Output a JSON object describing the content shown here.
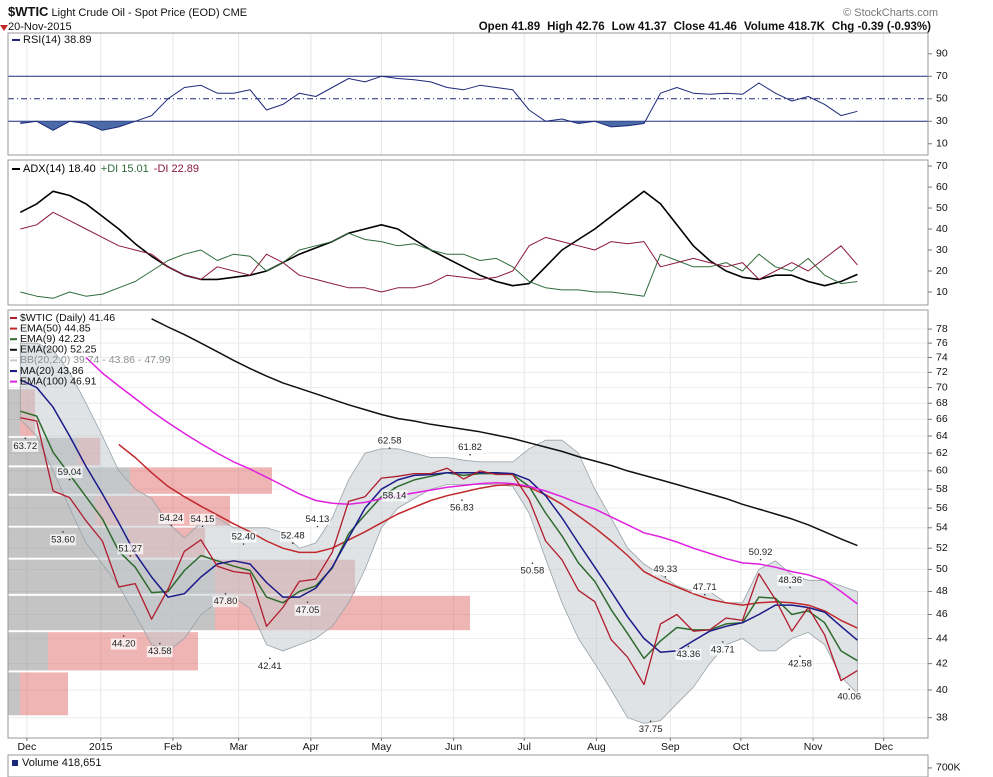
{
  "header": {
    "symbol": "$WTIC",
    "name": "Light Crude Oil - Spot Price (EOD) CME",
    "date": "20-Nov-2015",
    "copyright": "© StockCharts.com",
    "stats": [
      {
        "label": "Open",
        "value": "41.89"
      },
      {
        "label": "High",
        "value": "42.76"
      },
      {
        "label": "Low",
        "value": "41.37"
      },
      {
        "label": "Close",
        "value": "41.46"
      },
      {
        "label": "Volume",
        "value": "418.7K"
      },
      {
        "label": "Chg",
        "value": "-0.39 (-0.93%)"
      }
    ]
  },
  "chart_data": [
    {
      "type": "line",
      "ylim": [
        0,
        108.5
      ],
      "yticks": [
        10,
        30,
        50,
        70,
        90
      ],
      "levels": [
        70,
        50,
        30
      ],
      "level_color": "#1f2a7a",
      "fill_color": "#4a6aa8",
      "series": [
        {
          "name": "RSI(14) 38.89",
          "color": "#1f2a7a",
          "values": [
            28,
            30,
            22,
            30,
            28,
            22,
            25,
            30,
            35,
            50,
            60,
            62,
            55,
            55,
            58,
            40,
            45,
            55,
            52,
            60,
            68,
            65,
            70,
            68,
            67,
            65,
            60,
            58,
            62,
            60,
            58,
            40,
            30,
            32,
            28,
            30,
            25,
            26,
            28,
            55,
            60,
            55,
            54,
            55,
            54,
            64,
            55,
            48,
            52,
            45,
            35,
            38.89
          ]
        }
      ]
    },
    {
      "type": "line",
      "ylim": [
        3.8,
        72.9
      ],
      "yticks": [
        10,
        20,
        30,
        40,
        50,
        60,
        70
      ],
      "series": [
        {
          "name": "ADX(14) 18.40",
          "color": "#000000",
          "values": [
            48,
            52,
            58,
            56,
            52,
            46,
            40,
            33,
            27,
            22,
            18,
            16,
            16,
            17,
            18,
            20,
            24,
            28,
            31,
            34,
            38,
            40,
            42,
            40,
            35,
            30,
            26,
            22,
            18,
            15,
            13,
            14,
            22,
            30,
            35,
            40,
            46,
            52,
            58,
            52,
            42,
            32,
            25,
            20,
            17,
            16,
            18,
            18,
            15,
            13,
            15,
            18.4
          ]
        },
        {
          "name": "+DI 15.01",
          "color": "#2e6b3a",
          "values": [
            10,
            8,
            7,
            10,
            8,
            9,
            12,
            15,
            20,
            25,
            28,
            30,
            25,
            28,
            27,
            20,
            24,
            30,
            32,
            34,
            38,
            35,
            34,
            32,
            33,
            30,
            28,
            28,
            25,
            26,
            22,
            15,
            12,
            11,
            11,
            10,
            10,
            9,
            8,
            28,
            25,
            22,
            22,
            24,
            20,
            28,
            22,
            20,
            26,
            18,
            14,
            15.01
          ]
        },
        {
          "name": "-DI 22.89",
          "color": "#8b1a3a",
          "values": [
            40,
            42,
            48,
            44,
            40,
            36,
            32,
            30,
            28,
            22,
            18,
            16,
            22,
            20,
            18,
            28,
            24,
            18,
            16,
            14,
            12,
            12,
            10,
            12,
            12,
            14,
            18,
            17,
            16,
            17,
            20,
            32,
            36,
            34,
            32,
            30,
            34,
            33,
            34,
            22,
            24,
            26,
            24,
            22,
            24,
            16,
            20,
            24,
            20,
            26,
            32,
            22.89
          ]
        }
      ]
    },
    {
      "type": "line",
      "log": true,
      "grid": true,
      "x": [
        0,
        1,
        2,
        3,
        4,
        5,
        6,
        7,
        8,
        9,
        10,
        11,
        12,
        13,
        14,
        15,
        16,
        17,
        18,
        19,
        20,
        21,
        22,
        23,
        24,
        25,
        26,
        27,
        28,
        29,
        30,
        31,
        32,
        33,
        34,
        35,
        36,
        37,
        38,
        39,
        40,
        41,
        42,
        43,
        44,
        45,
        46,
        47,
        48,
        49,
        50,
        51
      ],
      "xlim": [
        -0.75,
        55.3
      ],
      "xticks": [
        {
          "value": 0.4,
          "label": "Dec"
        },
        {
          "value": 4.9,
          "label": "2015"
        },
        {
          "value": 9.3,
          "label": "Feb"
        },
        {
          "value": 13.3,
          "label": "Mar"
        },
        {
          "value": 17.7,
          "label": "Apr"
        },
        {
          "value": 22.0,
          "label": "May"
        },
        {
          "value": 26.4,
          "label": "Jun"
        },
        {
          "value": 30.7,
          "label": "Jul"
        },
        {
          "value": 35.1,
          "label": "Aug"
        },
        {
          "value": 39.6,
          "label": "Sep"
        },
        {
          "value": 43.9,
          "label": "Oct"
        },
        {
          "value": 48.3,
          "label": "Nov"
        },
        {
          "value": 52.6,
          "label": "Dec"
        }
      ],
      "ylim": [
        36.6,
        80.8
      ],
      "yticks": [
        38,
        40,
        42,
        44,
        46,
        48,
        50,
        52,
        54,
        56,
        58,
        60,
        62,
        64,
        66,
        68,
        70,
        72,
        74,
        76,
        78
      ],
      "series": [
        {
          "name": "$WTIC (Daily) 41.46",
          "color": "#b01c2e",
          "values": [
            66.2,
            65.8,
            57.8,
            57.1,
            54.7,
            52.7,
            48.4,
            48.7,
            45.6,
            48.2,
            51.7,
            52.8,
            50.3,
            49.8,
            49.6,
            45.0,
            46.6,
            48.9,
            49.1,
            51.6,
            56.7,
            57.2,
            59.2,
            59.4,
            59.7,
            59.7,
            60.3,
            59.1,
            60.0,
            59.6,
            59.6,
            56.9,
            52.7,
            50.9,
            48.1,
            47.1,
            43.9,
            42.5,
            40.4,
            45.2,
            46.0,
            44.6,
            44.7,
            45.7,
            45.5,
            49.6,
            47.3,
            44.6,
            46.6,
            44.3,
            40.7,
            41.46
          ]
        },
        {
          "name": "EMA(50) 44.85",
          "color": "#c0282c",
          "values": [
            null,
            null,
            null,
            null,
            null,
            null,
            63,
            61.5,
            59.8,
            58.3,
            57.2,
            56.2,
            55.3,
            54.4,
            53.6,
            52.7,
            52.0,
            51.6,
            51.6,
            52.0,
            52.8,
            53.6,
            54.5,
            55.4,
            56.1,
            56.8,
            57.3,
            57.7,
            58.1,
            58.4,
            58.5,
            58.2,
            57.4,
            56.4,
            55.2,
            54.0,
            52.7,
            51.3,
            49.8,
            49.0,
            48.4,
            47.8,
            47.3,
            47.0,
            46.8,
            47.0,
            47.1,
            47.0,
            46.8,
            46.3,
            45.5,
            44.85
          ]
        },
        {
          "name": "EMA(9) 42.23",
          "color": "#2e6b2e",
          "values": [
            67,
            66.4,
            62.1,
            59.6,
            57.2,
            54.9,
            51.7,
            50.2,
            47.9,
            48.0,
            49.9,
            51.3,
            50.8,
            50.3,
            49.9,
            47.5,
            47.0,
            48.0,
            48.5,
            50.1,
            53.4,
            55.3,
            57.2,
            58.3,
            59.0,
            59.4,
            59.8,
            59.5,
            59.7,
            59.7,
            59.6,
            58.3,
            55.5,
            53.2,
            50.6,
            48.9,
            46.4,
            44.4,
            42.4,
            43.8,
            44.9,
            44.7,
            44.7,
            45.2,
            45.3,
            47.5,
            47.4,
            46.0,
            46.3,
            45.3,
            43.0,
            42.23
          ]
        },
        {
          "name": "EMA(200) 52.25",
          "color": "#111111",
          "values": [
            null,
            null,
            null,
            null,
            null,
            null,
            null,
            null,
            79.5,
            78.3,
            77.2,
            76.0,
            74.8,
            73.6,
            72.5,
            71.5,
            70.6,
            69.9,
            69.2,
            68.5,
            67.8,
            67.2,
            66.6,
            66.1,
            65.8,
            65.4,
            65.1,
            64.8,
            64.5,
            64.1,
            63.7,
            63.2,
            62.7,
            62.2,
            61.6,
            61.1,
            60.6,
            60.0,
            59.5,
            59.0,
            58.5,
            58.0,
            57.5,
            57.0,
            56.4,
            55.9,
            55.4,
            54.9,
            54.3,
            53.6,
            52.9,
            52.25
          ]
        },
        {
          "name": "BB(20,2.0) 39.74 - 43.86 - 47.99",
          "color": "#c5ccd0",
          "band": true,
          "upper": [
            76,
            76,
            75,
            72,
            68,
            64,
            60,
            58,
            57,
            54.5,
            53,
            54.5,
            55,
            54,
            54,
            54,
            53.5,
            52,
            52.5,
            55,
            59,
            62,
            62.5,
            62.5,
            62,
            61.5,
            61.5,
            61.2,
            61,
            61,
            61,
            62.5,
            63.5,
            63.5,
            62,
            58,
            55,
            52,
            50.5,
            49.5,
            48.5,
            48,
            48,
            47,
            47,
            50,
            50.8,
            49.5,
            49,
            49,
            48.5,
            47.99
          ],
          "lower": [
            66,
            64,
            60,
            56,
            52.5,
            50.5,
            48.5,
            46,
            43.5,
            43,
            44,
            46,
            47,
            47.5,
            46.5,
            43.5,
            43,
            43.5,
            44,
            45,
            47,
            50,
            54,
            56,
            57,
            58,
            58.5,
            58.5,
            58.5,
            58.5,
            58.3,
            55.5,
            51,
            47,
            44,
            42,
            40,
            38,
            37.6,
            37.8,
            39,
            40.2,
            42,
            43.5,
            44,
            43,
            43,
            44,
            44.5,
            43.5,
            41,
            39.74
          ]
        },
        {
          "name": "MA(20) 43.86",
          "color": "#1a1a8a",
          "values": [
            71,
            70,
            67.5,
            64,
            60.5,
            57.5,
            54.5,
            51.5,
            49.3,
            47.5,
            47.8,
            49.3,
            50.5,
            50.8,
            50.5,
            48.8,
            47.5,
            47.5,
            48.3,
            50.2,
            53,
            56,
            58,
            59,
            59.5,
            59.6,
            59.8,
            59.8,
            59.8,
            59.8,
            59.7,
            59,
            57.3,
            55,
            52.5,
            50.2,
            48,
            45.8,
            44,
            42.9,
            43,
            43.8,
            44.6,
            45,
            45.3,
            46,
            46.8,
            46.8,
            46.6,
            46.2,
            45,
            43.86
          ]
        },
        {
          "name": "EMA(100) 46.91",
          "color": "#e020e0",
          "values": [
            null,
            null,
            null,
            null,
            74.0,
            71.9,
            70.2,
            68.6,
            67.0,
            65.6,
            64.3,
            63.1,
            62.0,
            61.0,
            60.2,
            59.3,
            58.4,
            57.5,
            56.8,
            56.5,
            56.4,
            56.6,
            57.0,
            57.3,
            57.6,
            57.9,
            58.2,
            58.4,
            58.6,
            58.7,
            58.6,
            58.3,
            57.8,
            57.2,
            56.5,
            55.9,
            55.1,
            54.3,
            53.5,
            53.1,
            52.6,
            52.0,
            51.5,
            51.0,
            50.6,
            50.5,
            50.2,
            49.8,
            49.5,
            49.0,
            48.0,
            46.91
          ]
        }
      ],
      "annotations": [
        {
          "x": 0.3,
          "value": 63.72,
          "label": "63.72"
        },
        {
          "x": 3.0,
          "value": 59.04,
          "label": "59.04"
        },
        {
          "x": 2.6,
          "value": 53.6,
          "label": "53.60"
        },
        {
          "x": 6.7,
          "value": 51.27,
          "label": "51.27"
        },
        {
          "x": 9.2,
          "value": 54.24,
          "label": "54.24"
        },
        {
          "x": 11.1,
          "value": 54.15,
          "label": "54.15"
        },
        {
          "x": 13.6,
          "value": 52.4,
          "label": "52.40"
        },
        {
          "x": 16.6,
          "value": 52.48,
          "label": "52.48"
        },
        {
          "x": 6.3,
          "value": 44.2,
          "label": "44.20"
        },
        {
          "x": 8.5,
          "value": 43.58,
          "label": "43.58"
        },
        {
          "x": 12.5,
          "value": 47.8,
          "label": "47.80"
        },
        {
          "x": 15.2,
          "value": 42.41,
          "label": "42.41"
        },
        {
          "x": 18.1,
          "value": 54.13,
          "label": "54.13"
        },
        {
          "x": 17.5,
          "value": 47.05,
          "label": "47.05"
        },
        {
          "x": 22.5,
          "value": 62.58,
          "label": "62.58"
        },
        {
          "x": 22.8,
          "value": 58.14,
          "label": "58.14"
        },
        {
          "x": 27.4,
          "value": 61.82,
          "label": "61.82"
        },
        {
          "x": 26.9,
          "value": 56.83,
          "label": "56.83"
        },
        {
          "x": 31.2,
          "value": 50.58,
          "label": "50.58"
        },
        {
          "x": 38.4,
          "value": 37.75,
          "label": "37.75"
        },
        {
          "x": 39.3,
          "value": 49.33,
          "label": "49.33"
        },
        {
          "x": 41.7,
          "value": 47.71,
          "label": "47.71"
        },
        {
          "x": 40.7,
          "value": 43.36,
          "label": "43.36"
        },
        {
          "x": 42.8,
          "value": 43.71,
          "label": "43.71"
        },
        {
          "x": 45.1,
          "value": 50.92,
          "label": "50.92"
        },
        {
          "x": 46.9,
          "value": 48.36,
          "label": "48.36"
        },
        {
          "x": 47.5,
          "value": 42.58,
          "label": "42.58"
        },
        {
          "x": 50.5,
          "value": 40.06,
          "label": "40.06"
        }
      ],
      "volume_by_price": {
        "bins": [
          38.1,
          41.4,
          44.6,
          47.7,
          51.0,
          54.1,
          57.4,
          60.5,
          63.9,
          69.9
        ],
        "xlim": [
          0,
          920
        ],
        "series": [
          {
            "color": "#8a8a8a",
            "values": [
              12,
              40,
              207,
              207,
              120,
              87,
              122,
              70,
              12
            ]
          },
          {
            "color": "#e06a6a",
            "values": [
              48,
              150,
              255,
              140,
              77,
              135,
              142,
              22,
              15
            ]
          }
        ]
      }
    },
    {
      "type": "bar",
      "ylim": [
        0,
        1700000
      ],
      "yticks": [
        {
          "value": 700000,
          "label": "700K"
        }
      ],
      "series": [
        {
          "name": "Volume 418,651",
          "color": "#1a2a7a"
        }
      ]
    }
  ]
}
